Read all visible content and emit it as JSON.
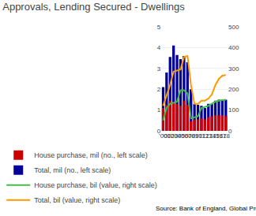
{
  "chart_data": {
    "type": "bar",
    "title": "Approvals, Lending Secured - Dwellings",
    "annotations": [
      "Source: Bank of England, Global Property Guide"
    ],
    "categories": [
      "'00",
      "'01",
      "'02",
      "'03",
      "'04",
      "'05",
      "'06",
      "'07",
      "'08",
      "'09",
      "'10",
      "'11",
      "'12",
      "'13",
      "'14",
      "'15",
      "'16",
      "'17",
      "'18"
    ],
    "series": [
      {
        "name": "House purchase, mil (no., left scale)",
        "type": "bar",
        "color": "#cc0000",
        "values": [
          1.1,
          1.25,
          1.45,
          1.35,
          1.3,
          1.2,
          1.45,
          1.25,
          0.45,
          0.55,
          0.55,
          0.6,
          0.55,
          0.65,
          0.7,
          0.75,
          0.75,
          0.75,
          0.7
        ]
      },
      {
        "name": "Total, mil (no., left scale)",
        "type": "bar",
        "color": "#000099",
        "values": [
          2.1,
          2.8,
          3.55,
          4.1,
          3.65,
          3.45,
          3.6,
          3.3,
          2.0,
          1.3,
          1.25,
          1.2,
          1.1,
          1.3,
          1.3,
          1.45,
          1.5,
          1.5,
          1.5
        ]
      },
      {
        "name": "House purchase, bil (value, right scale)",
        "type": "line",
        "axis": "y2",
        "color": "#44bb44",
        "values": [
          50,
          110,
          130,
          135,
          140,
          195,
          195,
          180,
          60,
          65,
          70,
          110,
          115,
          120,
          130,
          140,
          145,
          148,
          150
        ]
      },
      {
        "name": "Total, bil (value, right scale)",
        "type": "line",
        "axis": "y2",
        "color": "#ff9900",
        "values": [
          120,
          170,
          220,
          285,
          290,
          295,
          355,
          360,
          220,
          130,
          130,
          145,
          145,
          155,
          175,
          220,
          250,
          265,
          268
        ]
      }
    ],
    "ylim": [
      0,
      5
    ],
    "yticks": [
      0,
      1,
      2,
      3,
      4,
      5
    ],
    "y2lim": [
      0,
      500
    ],
    "y2ticks": [
      0,
      100,
      200,
      300,
      400,
      500
    ],
    "grid": true,
    "legend": "bottom"
  }
}
